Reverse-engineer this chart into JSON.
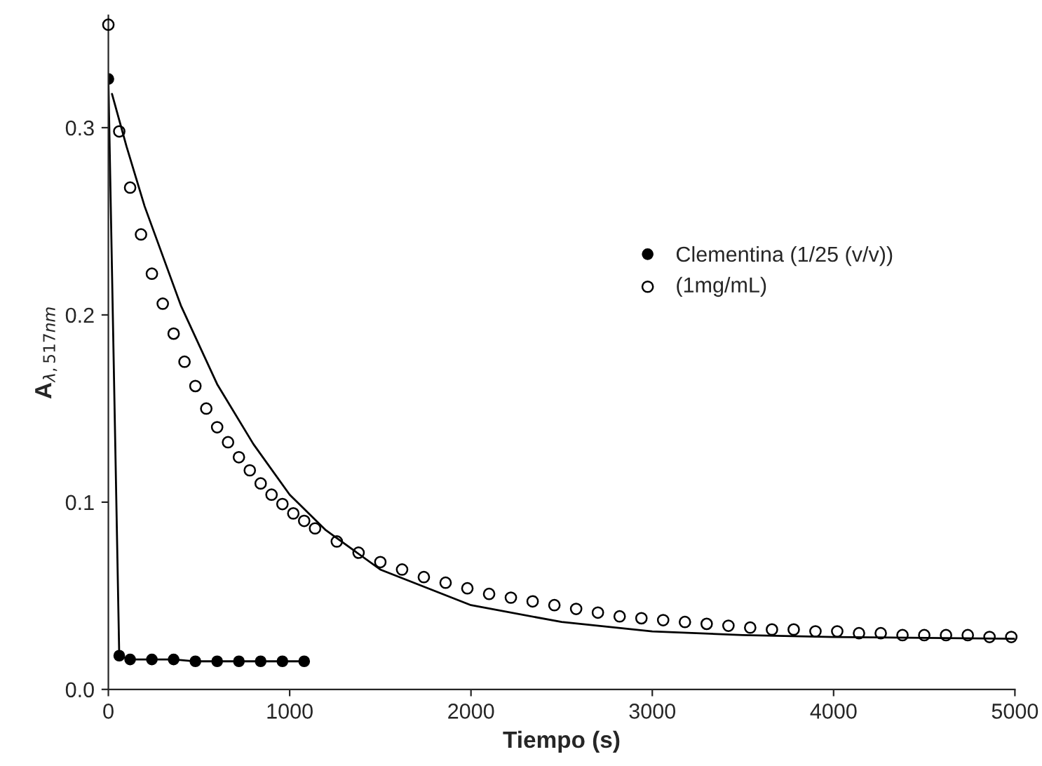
{
  "chart_data": {
    "type": "line",
    "xlabel": "Tiempo (s)",
    "ylabel": "A$_{λ,517nm}$",
    "xlim": [
      0,
      5000
    ],
    "xticks": [
      0,
      1000,
      2000,
      3000,
      4000,
      5000
    ],
    "ylim": [
      0,
      0.36
    ],
    "yticks": [
      {
        "value": 0,
        "label": "0.0"
      },
      0.1,
      0.2,
      0.3
    ],
    "legend": "right",
    "grid": false,
    "series": [
      {
        "name": "Clementina (1/25 (v/v))",
        "color": "#000000",
        "marker": "circle",
        "x": [
          0,
          60,
          120,
          240,
          360,
          480,
          600,
          720,
          840,
          960,
          1080
        ],
        "values": [
          0.326,
          0.018,
          0.016,
          0.016,
          0.016,
          0.015,
          0.015,
          0.015,
          0.015,
          0.015,
          0.015
        ]
      },
      {
        "name": "(1mg/mL)",
        "type": "scatter",
        "color": "#000000",
        "marker": "circle",
        "x": [
          0,
          60,
          120,
          180,
          240,
          300,
          360,
          420,
          480,
          540,
          600,
          660,
          720,
          780,
          840,
          900,
          960,
          1020,
          1080,
          1140,
          1260,
          1380,
          1500,
          1620,
          1740,
          1860,
          1980,
          2100,
          2220,
          2340,
          2460,
          2580,
          2700,
          2820,
          2940,
          3060,
          3180,
          3300,
          3420,
          3540,
          3660,
          3780,
          3900,
          4020,
          4140,
          4260,
          4380,
          4500,
          4620,
          4740,
          4860,
          4980
        ],
        "values": [
          0.355,
          0.298,
          0.268,
          0.243,
          0.222,
          0.206,
          0.19,
          0.175,
          0.162,
          0.15,
          0.14,
          0.132,
          0.124,
          0.117,
          0.11,
          0.104,
          0.099,
          0.094,
          0.09,
          0.086,
          0.079,
          0.073,
          0.068,
          0.064,
          0.06,
          0.057,
          0.054,
          0.051,
          0.049,
          0.047,
          0.045,
          0.043,
          0.041,
          0.039,
          0.038,
          0.037,
          0.036,
          0.035,
          0.034,
          0.033,
          0.032,
          0.032,
          0.031,
          0.031,
          0.03,
          0.03,
          0.029,
          0.029,
          0.029,
          0.029,
          0.028,
          0.028
        ]
      },
      {
        "color": "#000000",
        "marker": "none",
        "x": [
          20,
          100,
          200,
          400,
          600,
          800,
          1000,
          1200,
          1500,
          2000,
          2500,
          3000,
          3500,
          4000,
          5000
        ],
        "values": [
          0.318,
          0.29,
          0.258,
          0.205,
          0.163,
          0.131,
          0.104,
          0.085,
          0.064,
          0.045,
          0.036,
          0.031,
          0.029,
          0.028,
          0.027
        ]
      }
    ]
  }
}
